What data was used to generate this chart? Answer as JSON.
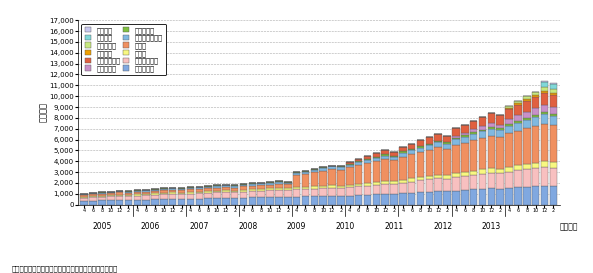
{
  "ylabel": "（件数）",
  "xlabel": "（年度）",
  "source": "資料：日本商工会議所のデータを基に経済産業省作成。",
  "ylim": [
    0,
    17000
  ],
  "series": [
    {
      "label": "日ペルー",
      "color": "#c8c8f0"
    },
    {
      "label": "日インド",
      "color": "#80d8d8"
    },
    {
      "label": "日ベトナム",
      "color": "#c8e880"
    },
    {
      "label": "日スイス",
      "color": "#f0a000"
    },
    {
      "label": "日フィリピン",
      "color": "#e06040"
    },
    {
      "label": "日アセアン",
      "color": "#c890c8"
    },
    {
      "label": "日ブルネイ",
      "color": "#80c040"
    },
    {
      "label": "日インドネシア",
      "color": "#80b8e0"
    },
    {
      "label": "日タイ",
      "color": "#f09060"
    },
    {
      "label": "日チリ",
      "color": "#f8f880"
    },
    {
      "label": "日マレーシア",
      "color": "#f8c0c0"
    },
    {
      "label": "日メキシコ",
      "color": "#80a8e0"
    }
  ],
  "month_labels": [
    "4",
    "6",
    "8",
    "10",
    "12",
    "2",
    "4",
    "6",
    "8",
    "10",
    "12",
    "2",
    "4",
    "6",
    "8",
    "10",
    "12",
    "2",
    "4",
    "6",
    "8",
    "10",
    "12",
    "2",
    "4",
    "6",
    "8",
    "10",
    "12",
    "2",
    "4",
    "6",
    "8",
    "10",
    "12",
    "2",
    "4",
    "6",
    "8",
    "10",
    "12",
    "2",
    "4",
    "6",
    "8",
    "10",
    "12",
    "2",
    "4",
    "6",
    "8",
    "10",
    "12",
    "2"
  ],
  "year_labels": [
    "2005",
    "2006",
    "2007",
    "2008",
    "2009",
    "2010",
    "2011",
    "2012",
    "2013"
  ],
  "year_midpoints": [
    2.0,
    7.5,
    13.0,
    18.5,
    24.0,
    29.5,
    35.0,
    40.5,
    46.0
  ],
  "year_dividers": [
    -0.5,
    5.5,
    11.5,
    17.5,
    23.5,
    29.5,
    35.5,
    41.5,
    47.5,
    53.5
  ],
  "data": {
    "日メキシコ": [
      350,
      370,
      390,
      410,
      430,
      420,
      440,
      460,
      480,
      500,
      510,
      500,
      530,
      550,
      570,
      590,
      610,
      590,
      640,
      660,
      680,
      700,
      720,
      710,
      740,
      760,
      780,
      800,
      820,
      810,
      840,
      880,
      920,
      960,
      1000,
      980,
      1050,
      1100,
      1150,
      1200,
      1250,
      1230,
      1300,
      1350,
      1400,
      1450,
      1500,
      1480,
      1550,
      1600,
      1650,
      1700,
      1750,
      1720
    ],
    "日マレーシア": [
      300,
      320,
      340,
      360,
      380,
      360,
      390,
      410,
      430,
      450,
      470,
      450,
      480,
      500,
      520,
      540,
      560,
      540,
      570,
      590,
      610,
      630,
      650,
      630,
      660,
      680,
      700,
      720,
      740,
      730,
      760,
      800,
      840,
      880,
      920,
      900,
      980,
      1030,
      1080,
      1130,
      1180,
      1160,
      1250,
      1300,
      1350,
      1400,
      1450,
      1430,
      1500,
      1550,
      1600,
      1650,
      1700,
      1680
    ],
    "日チリ": [
      100,
      105,
      110,
      115,
      120,
      115,
      120,
      130,
      135,
      140,
      145,
      140,
      150,
      155,
      160,
      165,
      170,
      165,
      175,
      180,
      185,
      190,
      195,
      190,
      200,
      205,
      210,
      215,
      220,
      215,
      225,
      235,
      245,
      255,
      265,
      260,
      280,
      295,
      310,
      325,
      340,
      335,
      360,
      375,
      390,
      405,
      420,
      410,
      450,
      470,
      490,
      510,
      530,
      520
    ],
    "日タイ": [
      150,
      160,
      170,
      180,
      190,
      180,
      200,
      210,
      220,
      230,
      240,
      230,
      250,
      260,
      270,
      280,
      290,
      280,
      300,
      310,
      320,
      330,
      340,
      330,
      1100,
      1200,
      1300,
      1400,
      1500,
      1450,
      1600,
      1700,
      1800,
      1900,
      2000,
      1950,
      2100,
      2200,
      2300,
      2400,
      2500,
      2450,
      2600,
      2700,
      2800,
      2900,
      3000,
      2950,
      3100,
      3200,
      3300,
      3400,
      3500,
      3450
    ],
    "日インドネシア": [
      80,
      85,
      90,
      95,
      100,
      95,
      105,
      110,
      115,
      120,
      125,
      120,
      130,
      135,
      140,
      145,
      150,
      145,
      160,
      165,
      170,
      175,
      180,
      175,
      200,
      210,
      220,
      230,
      240,
      235,
      260,
      280,
      300,
      320,
      340,
      330,
      380,
      400,
      420,
      440,
      460,
      450,
      500,
      530,
      560,
      590,
      620,
      600,
      680,
      720,
      760,
      800,
      840,
      820
    ],
    "日ブルネイ": [
      40,
      42,
      44,
      46,
      48,
      46,
      50,
      52,
      54,
      56,
      58,
      56,
      60,
      62,
      64,
      66,
      68,
      66,
      70,
      72,
      74,
      76,
      78,
      76,
      80,
      82,
      84,
      86,
      88,
      86,
      90,
      95,
      100,
      105,
      110,
      108,
      120,
      125,
      130,
      135,
      140,
      138,
      150,
      155,
      160,
      165,
      170,
      168,
      180,
      185,
      190,
      195,
      200,
      198
    ],
    "日アセアン": [
      0,
      0,
      0,
      0,
      0,
      0,
      0,
      0,
      0,
      0,
      0,
      0,
      0,
      0,
      0,
      0,
      0,
      0,
      0,
      0,
      0,
      0,
      0,
      0,
      0,
      0,
      0,
      0,
      0,
      0,
      0,
      0,
      0,
      0,
      0,
      0,
      0,
      0,
      0,
      0,
      0,
      0,
      180,
      220,
      270,
      320,
      370,
      350,
      460,
      510,
      560,
      610,
      660,
      640
    ],
    "日フィリピン": [
      0,
      0,
      0,
      0,
      0,
      0,
      0,
      0,
      0,
      0,
      0,
      0,
      0,
      0,
      0,
      0,
      0,
      0,
      0,
      0,
      0,
      0,
      0,
      0,
      0,
      0,
      0,
      0,
      0,
      0,
      180,
      230,
      280,
      330,
      380,
      360,
      430,
      480,
      530,
      580,
      630,
      600,
      680,
      730,
      780,
      830,
      880,
      860,
      930,
      980,
      1030,
      1080,
      1130,
      1100
    ],
    "日スイス": [
      0,
      0,
      0,
      0,
      0,
      0,
      0,
      0,
      0,
      0,
      0,
      0,
      0,
      0,
      0,
      0,
      0,
      0,
      0,
      0,
      0,
      0,
      0,
      0,
      0,
      0,
      0,
      0,
      0,
      0,
      0,
      0,
      0,
      0,
      0,
      0,
      0,
      0,
      0,
      0,
      0,
      0,
      0,
      0,
      0,
      0,
      0,
      0,
      90,
      110,
      130,
      150,
      170,
      160
    ],
    "日ベトナム": [
      0,
      0,
      0,
      0,
      0,
      0,
      0,
      0,
      0,
      0,
      0,
      0,
      0,
      0,
      0,
      0,
      0,
      0,
      0,
      0,
      0,
      0,
      0,
      0,
      0,
      0,
      0,
      0,
      0,
      0,
      0,
      0,
      0,
      0,
      0,
      0,
      0,
      0,
      0,
      0,
      0,
      0,
      0,
      0,
      0,
      0,
      0,
      0,
      180,
      230,
      280,
      330,
      380,
      360
    ],
    "日インド": [
      0,
      0,
      0,
      0,
      0,
      0,
      0,
      0,
      0,
      0,
      0,
      0,
      0,
      0,
      0,
      0,
      0,
      0,
      0,
      0,
      0,
      0,
      0,
      0,
      0,
      0,
      0,
      0,
      0,
      0,
      0,
      0,
      0,
      0,
      0,
      0,
      0,
      0,
      0,
      0,
      0,
      0,
      0,
      0,
      0,
      0,
      0,
      0,
      0,
      0,
      0,
      0,
      480,
      460
    ],
    "日ペルー": [
      0,
      0,
      0,
      0,
      0,
      0,
      0,
      0,
      0,
      0,
      0,
      0,
      0,
      0,
      0,
      0,
      0,
      0,
      0,
      0,
      0,
      0,
      0,
      0,
      0,
      0,
      0,
      0,
      0,
      0,
      0,
      0,
      0,
      0,
      0,
      0,
      0,
      0,
      0,
      0,
      0,
      0,
      0,
      0,
      0,
      0,
      0,
      0,
      0,
      0,
      0,
      0,
      90,
      85
    ]
  }
}
